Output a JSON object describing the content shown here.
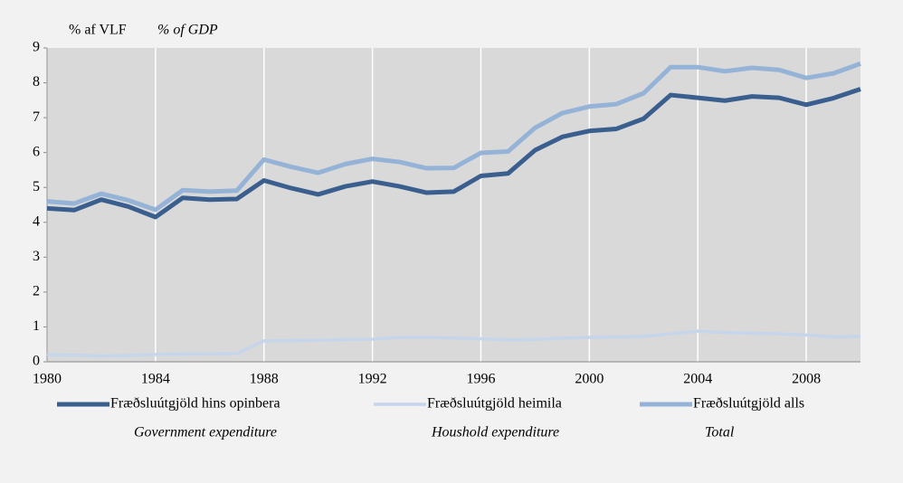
{
  "chart_data": {
    "type": "line",
    "y_label": "% af VLF",
    "y_label_en": "% of GDP",
    "x": [
      1980,
      1981,
      1982,
      1983,
      1984,
      1985,
      1986,
      1987,
      1988,
      1989,
      1990,
      1991,
      1992,
      1993,
      1994,
      1995,
      1996,
      1997,
      1998,
      1999,
      2000,
      2001,
      2002,
      2003,
      2004,
      2005,
      2006,
      2007,
      2008,
      2009,
      2010
    ],
    "xlim": [
      1980,
      2010
    ],
    "xticks": [
      1980,
      1984,
      1988,
      1992,
      1996,
      2000,
      2004,
      2008
    ],
    "ylim": [
      0,
      9
    ],
    "yticks": [
      0,
      1,
      2,
      3,
      4,
      5,
      6,
      7,
      8,
      9
    ],
    "grid": true,
    "series": [
      {
        "name": "Fræðsluútgjöld hins opinbera",
        "name_en": "Government expenditure",
        "color": "#3a5f8f",
        "values": [
          4.4,
          4.35,
          4.65,
          4.45,
          4.15,
          4.7,
          4.65,
          4.67,
          5.2,
          4.98,
          4.8,
          5.03,
          5.17,
          5.03,
          4.85,
          4.88,
          5.33,
          5.4,
          6.07,
          6.45,
          6.62,
          6.68,
          6.97,
          7.65,
          7.57,
          7.49,
          7.61,
          7.57,
          7.37,
          7.56,
          7.82
        ]
      },
      {
        "name": "Fræðsluútgjöld heimila",
        "name_en": "Houshold expenditure",
        "color": "#c5d5ea",
        "values": [
          0.2,
          0.19,
          0.17,
          0.18,
          0.21,
          0.22,
          0.23,
          0.24,
          0.6,
          0.61,
          0.62,
          0.64,
          0.65,
          0.7,
          0.7,
          0.68,
          0.66,
          0.63,
          0.64,
          0.68,
          0.7,
          0.71,
          0.73,
          0.8,
          0.88,
          0.84,
          0.82,
          0.8,
          0.77,
          0.71,
          0.73
        ]
      },
      {
        "name": "Fræðsluútgjöld alls",
        "name_en": "Total",
        "color": "#95b3d7",
        "values": [
          4.6,
          4.54,
          4.82,
          4.63,
          4.36,
          4.92,
          4.88,
          4.91,
          5.8,
          5.59,
          5.42,
          5.67,
          5.82,
          5.73,
          5.55,
          5.56,
          5.99,
          6.03,
          6.71,
          7.13,
          7.32,
          7.39,
          7.7,
          8.45,
          8.45,
          8.33,
          8.43,
          8.37,
          8.14,
          8.27,
          8.55
        ]
      }
    ]
  }
}
